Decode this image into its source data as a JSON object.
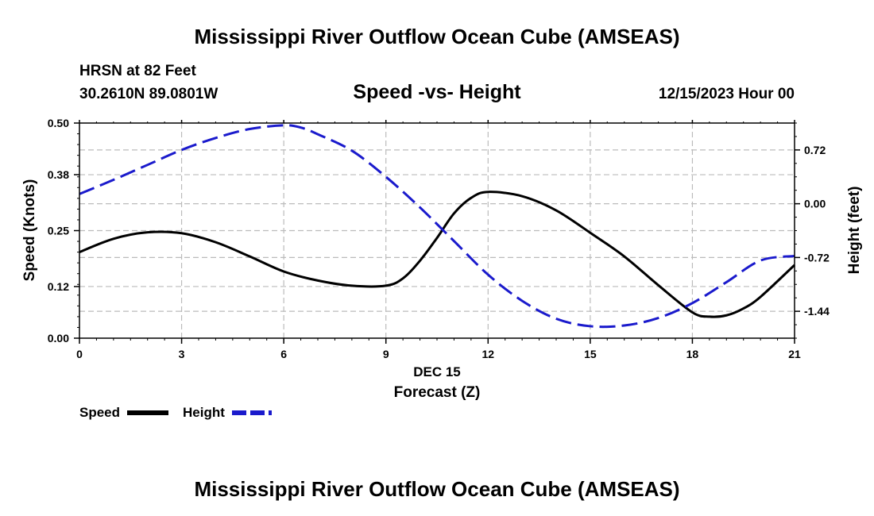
{
  "chart_data": {
    "type": "line",
    "title": "Mississippi River Outflow Ocean Cube (AMSEAS)",
    "footer_title": "Mississippi River Outflow Ocean Cube (AMSEAS)",
    "subtitle": "Speed -vs- Height",
    "station": "HRSN at 82 Feet",
    "location": "30.2610N  89.0801W",
    "datetime": "12/15/2023 Hour 00",
    "xlabel_date": "DEC 15",
    "xlabel": "Forecast (Z)",
    "ylabel_left": "Speed (Knots)",
    "ylabel_right": "Height (feet)",
    "xlim": [
      0,
      21
    ],
    "ylim_left": [
      0,
      0.5
    ],
    "ylim_right": [
      -1.8,
      1.08
    ],
    "x_ticks": [
      "0",
      "3",
      "6",
      "9",
      "12",
      "15",
      "18",
      "21"
    ],
    "y_ticks_left": [
      "0.00",
      "0.12",
      "0.25",
      "0.38",
      "0.50"
    ],
    "y_ticks_right": [
      "-1.44",
      "-0.72",
      "0.00",
      "0.72"
    ],
    "grid": true,
    "legend_position": "bottom-left",
    "series": [
      {
        "name": "Speed",
        "axis": "left",
        "color": "#000000",
        "style": "solid",
        "x": [
          0,
          1,
          2,
          3,
          4,
          5,
          6,
          7,
          8,
          9,
          9.5,
          10,
          10.5,
          11,
          11.5,
          12,
          13,
          14,
          15,
          16,
          17,
          18,
          18.5,
          19,
          19.5,
          20,
          21
        ],
        "values": [
          0.2,
          0.231,
          0.246,
          0.244,
          0.223,
          0.19,
          0.155,
          0.134,
          0.122,
          0.122,
          0.139,
          0.18,
          0.233,
          0.29,
          0.326,
          0.34,
          0.33,
          0.297,
          0.245,
          0.19,
          0.123,
          0.06,
          0.05,
          0.053,
          0.069,
          0.096,
          0.17
        ]
      },
      {
        "name": "Height",
        "axis": "right",
        "color": "#1a1acc",
        "style": "dashed",
        "x": [
          0,
          1,
          2,
          3,
          4,
          5,
          6,
          6.5,
          7,
          8,
          9,
          10,
          11,
          12,
          13,
          14,
          15,
          16,
          17,
          18,
          19,
          20,
          21
        ],
        "values": [
          0.13,
          0.32,
          0.52,
          0.72,
          0.88,
          1.0,
          1.05,
          1.02,
          0.93,
          0.71,
          0.36,
          -0.05,
          -0.5,
          -0.95,
          -1.3,
          -1.54,
          -1.64,
          -1.63,
          -1.53,
          -1.33,
          -1.05,
          -0.76,
          -0.7
        ]
      }
    ]
  }
}
